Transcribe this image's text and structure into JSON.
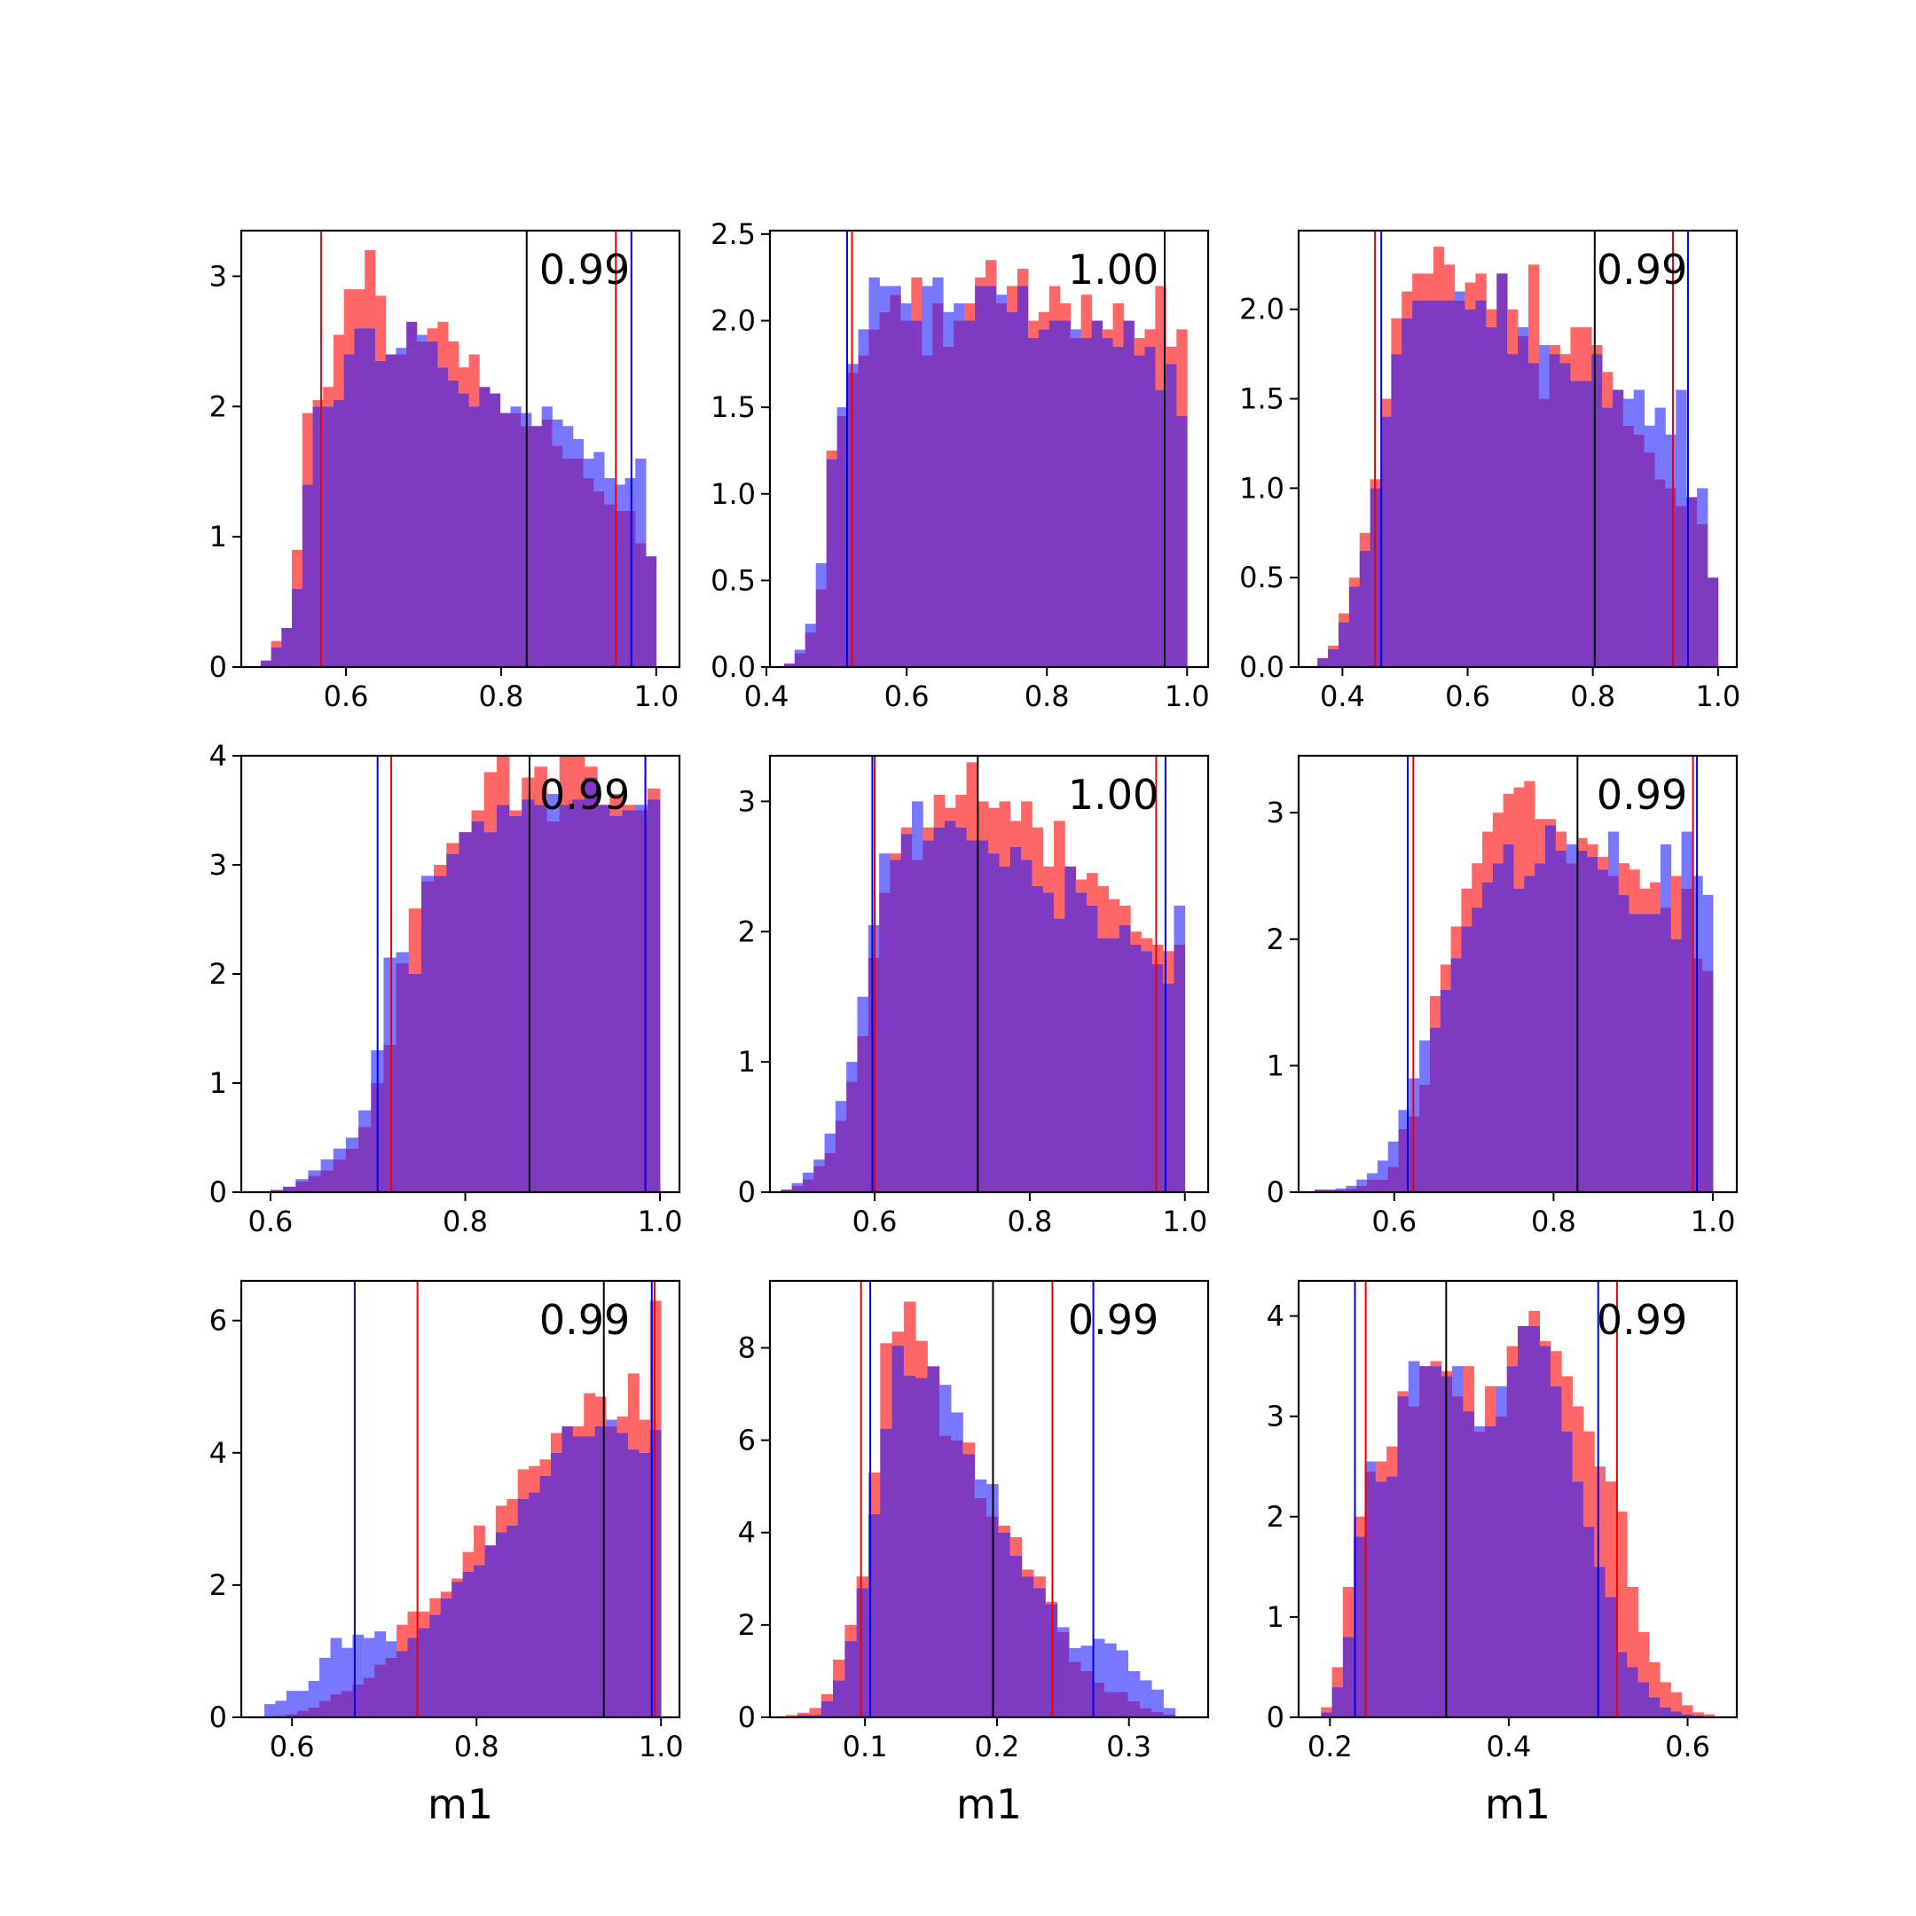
{
  "colors": {
    "red": "#ff6666",
    "blue": "#7777ff",
    "overlap": "#7f3bbf",
    "line_red": "#ee0000",
    "line_blue": "#0000ee",
    "line_black": "#000000"
  },
  "chart_data": [
    {
      "type": "bar",
      "xlim": [
        0.465,
        1.03
      ],
      "ylim": [
        0,
        3.35
      ],
      "xticks": [
        0.6,
        0.8,
        1.0
      ],
      "xtick_labels": [
        "0.6",
        "0.8",
        "1.0"
      ],
      "yticks": [
        0,
        1,
        2,
        3
      ],
      "ytick_labels": [
        "0",
        "1",
        "2",
        "3"
      ],
      "bins": [
        0.49,
        1.0
      ],
      "red_values": [
        0.05,
        0.2,
        0.3,
        0.9,
        1.95,
        2.05,
        2.15,
        2.55,
        2.9,
        2.9,
        3.2,
        2.85,
        2.4,
        2.4,
        2.65,
        2.5,
        2.6,
        2.65,
        2.5,
        2.3,
        2.4,
        2.15,
        2.1,
        1.95,
        1.95,
        1.85,
        1.85,
        1.9,
        1.7,
        1.6,
        1.6,
        1.45,
        1.35,
        1.25,
        1.2,
        1.2,
        0.95,
        0.85
      ],
      "blue_values": [
        0.05,
        0.15,
        0.3,
        0.6,
        1.4,
        2.0,
        2.0,
        2.05,
        2.4,
        2.6,
        2.6,
        2.35,
        2.4,
        2.45,
        2.65,
        2.55,
        2.5,
        2.3,
        2.2,
        2.1,
        2.0,
        2.15,
        2.1,
        1.95,
        2.0,
        1.95,
        1.85,
        2.0,
        1.9,
        1.85,
        1.75,
        1.6,
        1.65,
        1.45,
        1.4,
        1.45,
        1.6,
        0.85
      ],
      "vlines": [
        {
          "x": 0.568,
          "color": "red"
        },
        {
          "x": 0.948,
          "color": "red"
        },
        {
          "x": 0.968,
          "color": "blue"
        },
        {
          "x": 0.833,
          "color": "black"
        }
      ],
      "annotation": "0.99",
      "xlabel": ""
    },
    {
      "type": "bar",
      "xlim": [
        0.405,
        1.03
      ],
      "ylim": [
        0,
        2.52
      ],
      "xticks": [
        0.4,
        0.6,
        0.8,
        1.0
      ],
      "xtick_labels": [
        "0.4",
        "0.6",
        "0.8",
        "1.0"
      ],
      "yticks": [
        0.0,
        0.5,
        1.0,
        1.5,
        2.0,
        2.5
      ],
      "ytick_labels": [
        "0.0",
        "0.5",
        "1.0",
        "1.5",
        "2.0",
        "2.5"
      ],
      "bins": [
        0.425,
        1.0
      ],
      "red_values": [
        0.02,
        0.08,
        0.2,
        0.45,
        1.25,
        1.45,
        1.7,
        1.8,
        1.95,
        2.05,
        2.15,
        2.0,
        2.25,
        1.8,
        2.1,
        1.85,
        2.0,
        2.1,
        2.25,
        2.35,
        2.1,
        2.2,
        2.3,
        2.0,
        2.05,
        2.2,
        2.1,
        1.9,
        2.15,
        2.0,
        1.95,
        2.1,
        2.0,
        1.9,
        1.95,
        2.2,
        1.85,
        1.95
      ],
      "blue_values": [
        0.02,
        0.1,
        0.25,
        0.6,
        1.2,
        1.5,
        1.75,
        1.95,
        2.25,
        2.2,
        2.2,
        2.1,
        2.0,
        2.2,
        2.25,
        2.05,
        2.1,
        2.0,
        2.2,
        2.2,
        2.15,
        2.05,
        2.2,
        1.9,
        1.95,
        2.0,
        2.0,
        1.95,
        1.9,
        2.0,
        1.9,
        1.85,
        2.0,
        1.8,
        1.85,
        1.6,
        1.75,
        1.45
      ],
      "vlines": [
        {
          "x": 0.515,
          "color": "blue"
        },
        {
          "x": 0.522,
          "color": "red"
        },
        {
          "x": 0.968,
          "color": "red"
        },
        {
          "x": 0.968,
          "color": "black"
        }
      ],
      "annotation": "1.00",
      "xlabel": ""
    },
    {
      "type": "bar",
      "xlim": [
        0.33,
        1.03
      ],
      "ylim": [
        0,
        2.44
      ],
      "xticks": [
        0.4,
        0.6,
        0.8,
        1.0
      ],
      "xtick_labels": [
        "0.4",
        "0.6",
        "0.8",
        "1.0"
      ],
      "yticks": [
        0.0,
        0.5,
        1.0,
        1.5,
        2.0
      ],
      "ytick_labels": [
        "0.0",
        "0.5",
        "1.0",
        "1.5",
        "2.0"
      ],
      "bins": [
        0.36,
        1.0
      ],
      "red_values": [
        0.05,
        0.12,
        0.3,
        0.5,
        0.75,
        1.05,
        1.5,
        1.95,
        2.1,
        2.2,
        2.2,
        2.35,
        2.25,
        2.05,
        2.15,
        2.2,
        2.0,
        2.2,
        2.0,
        1.85,
        2.25,
        1.5,
        1.8,
        1.75,
        1.9,
        1.9,
        1.8,
        1.65,
        1.55,
        1.35,
        1.3,
        1.2,
        1.05,
        1.0,
        0.9,
        0.95,
        0.8,
        0.5
      ],
      "blue_values": [
        0.05,
        0.1,
        0.25,
        0.45,
        0.65,
        1.0,
        1.4,
        1.75,
        1.95,
        2.05,
        2.05,
        2.05,
        2.05,
        2.1,
        2.0,
        2.05,
        1.9,
        2.2,
        1.75,
        1.9,
        1.7,
        1.8,
        1.75,
        1.7,
        1.6,
        1.6,
        1.75,
        1.45,
        1.55,
        1.5,
        1.55,
        1.35,
        1.45,
        1.3,
        1.55,
        0.95,
        1.0,
        0.5
      ],
      "vlines": [
        {
          "x": 0.452,
          "color": "red"
        },
        {
          "x": 0.462,
          "color": "blue"
        },
        {
          "x": 0.928,
          "color": "red"
        },
        {
          "x": 0.952,
          "color": "blue"
        },
        {
          "x": 0.803,
          "color": "black"
        }
      ],
      "annotation": "0.99",
      "xlabel": ""
    },
    {
      "type": "bar",
      "xlim": [
        0.57,
        1.02
      ],
      "ylim": [
        0,
        4.0
      ],
      "xticks": [
        0.6,
        0.8,
        1.0
      ],
      "xtick_labels": [
        "0.6",
        "0.8",
        "1.0"
      ],
      "yticks": [
        0,
        1,
        2,
        3,
        4
      ],
      "ytick_labels": [
        "0",
        "1",
        "2",
        "3",
        "4"
      ],
      "bins": [
        0.6,
        1.0
      ],
      "red_values": [
        0.02,
        0.05,
        0.1,
        0.15,
        0.2,
        0.3,
        0.4,
        0.6,
        1.0,
        1.35,
        2.1,
        2.6,
        2.85,
        3.0,
        3.2,
        3.3,
        3.5,
        3.85,
        4.0,
        3.5,
        3.8,
        3.9,
        3.4,
        4.15,
        4.15,
        3.9,
        3.55,
        3.65,
        3.55,
        3.5,
        3.7
      ],
      "blue_values": [
        0.02,
        0.05,
        0.12,
        0.2,
        0.3,
        0.4,
        0.5,
        0.75,
        1.3,
        2.15,
        2.2,
        2.0,
        2.9,
        2.9,
        3.1,
        3.3,
        3.4,
        3.3,
        3.55,
        3.45,
        3.6,
        3.55,
        3.65,
        3.55,
        3.6,
        3.8,
        3.55,
        3.45,
        3.5,
        3.55,
        3.6
      ],
      "vlines": [
        {
          "x": 0.71,
          "color": "blue"
        },
        {
          "x": 0.724,
          "color": "red"
        },
        {
          "x": 0.985,
          "color": "red"
        },
        {
          "x": 0.985,
          "color": "blue"
        },
        {
          "x": 0.866,
          "color": "black"
        }
      ],
      "annotation": "0.99",
      "xlabel": ""
    },
    {
      "type": "bar",
      "xlim": [
        0.465,
        1.03
      ],
      "ylim": [
        0,
        3.35
      ],
      "xticks": [
        0.6,
        0.8,
        1.0
      ],
      "xtick_labels": [
        "0.6",
        "0.8",
        "1.0"
      ],
      "yticks": [
        0,
        1,
        2,
        3
      ],
      "ytick_labels": [
        "0",
        "1",
        "2",
        "3"
      ],
      "bins": [
        0.465,
        1.0
      ],
      "red_values": [
        0.0,
        0.02,
        0.05,
        0.1,
        0.2,
        0.3,
        0.55,
        0.85,
        1.2,
        1.8,
        2.3,
        2.6,
        2.8,
        2.55,
        2.8,
        3.05,
        2.95,
        3.05,
        3.3,
        3.0,
        2.95,
        3.0,
        2.85,
        3.0,
        2.8,
        2.5,
        2.85,
        2.5,
        2.4,
        2.45,
        2.35,
        2.25,
        2.2,
        2.0,
        1.95,
        1.9,
        1.85,
        1.9
      ],
      "blue_values": [
        0.0,
        0.02,
        0.07,
        0.15,
        0.25,
        0.45,
        0.7,
        1.0,
        1.5,
        2.05,
        2.6,
        2.55,
        2.75,
        3.0,
        2.7,
        2.8,
        2.85,
        2.8,
        2.7,
        2.7,
        2.6,
        2.5,
        2.65,
        2.55,
        2.35,
        2.3,
        2.1,
        2.5,
        2.3,
        2.2,
        1.95,
        1.95,
        2.05,
        1.9,
        1.85,
        1.75,
        1.6,
        2.2
      ],
      "vlines": [
        {
          "x": 0.597,
          "color": "blue"
        },
        {
          "x": 0.6,
          "color": "red"
        },
        {
          "x": 0.963,
          "color": "red"
        },
        {
          "x": 0.975,
          "color": "blue"
        },
        {
          "x": 0.733,
          "color": "black"
        }
      ],
      "annotation": "1.00",
      "xlabel": ""
    },
    {
      "type": "bar",
      "xlim": [
        0.48,
        1.03
      ],
      "ylim": [
        0,
        3.45
      ],
      "xticks": [
        0.6,
        0.8,
        1.0
      ],
      "xtick_labels": [
        "0.6",
        "0.8",
        "1.0"
      ],
      "yticks": [
        0,
        1,
        2,
        3
      ],
      "ytick_labels": [
        "0",
        "1",
        "2",
        "3"
      ],
      "bins": [
        0.5,
        1.0
      ],
      "red_values": [
        0.02,
        0.02,
        0.02,
        0.03,
        0.05,
        0.1,
        0.1,
        0.2,
        0.5,
        0.6,
        0.85,
        1.55,
        1.8,
        2.1,
        2.4,
        2.6,
        2.85,
        3.0,
        3.15,
        3.2,
        3.25,
        2.95,
        2.95,
        2.85,
        2.6,
        2.8,
        2.75,
        2.65,
        2.5,
        2.6,
        2.55,
        2.4,
        2.45,
        2.25,
        2.5,
        2.4,
        1.85,
        1.75
      ],
      "blue_values": [
        0.02,
        0.02,
        0.03,
        0.05,
        0.1,
        0.15,
        0.25,
        0.4,
        0.65,
        0.9,
        1.2,
        1.3,
        1.6,
        1.85,
        2.1,
        2.25,
        2.45,
        2.6,
        2.75,
        2.4,
        2.5,
        2.6,
        2.9,
        2.7,
        2.75,
        2.7,
        2.65,
        2.55,
        2.85,
        2.35,
        2.2,
        2.2,
        2.2,
        2.75,
        2.0,
        2.85,
        2.5,
        2.35
      ],
      "vlines": [
        {
          "x": 0.617,
          "color": "blue"
        },
        {
          "x": 0.624,
          "color": "red"
        },
        {
          "x": 0.975,
          "color": "red"
        },
        {
          "x": 0.98,
          "color": "blue"
        },
        {
          "x": 0.83,
          "color": "black"
        }
      ],
      "annotation": "0.99",
      "xlabel": ""
    },
    {
      "type": "bar",
      "xlim": [
        0.545,
        1.02
      ],
      "ylim": [
        0,
        6.6
      ],
      "xticks": [
        0.6,
        0.8,
        1.0
      ],
      "xtick_labels": [
        "0.6",
        "0.8",
        "1.0"
      ],
      "yticks": [
        0,
        2,
        4,
        6
      ],
      "ytick_labels": [
        "0",
        "2",
        "4",
        "6"
      ],
      "bins": [
        0.57,
        1.0
      ],
      "red_values": [
        0.0,
        0.02,
        0.05,
        0.1,
        0.15,
        0.25,
        0.35,
        0.4,
        0.5,
        0.6,
        0.8,
        0.9,
        1.4,
        1.6,
        1.6,
        1.8,
        1.9,
        2.1,
        2.5,
        2.9,
        2.6,
        3.2,
        3.3,
        3.75,
        3.8,
        3.9,
        4.3,
        4.4,
        4.4,
        4.9,
        4.85,
        4.4,
        4.55,
        5.2,
        4.5,
        6.3
      ],
      "blue_values": [
        0.2,
        0.25,
        0.4,
        0.4,
        0.55,
        0.9,
        1.2,
        1.05,
        1.25,
        1.2,
        1.3,
        1.15,
        1.0,
        1.2,
        1.35,
        1.55,
        1.8,
        2.05,
        2.2,
        2.3,
        2.6,
        2.8,
        2.9,
        3.3,
        3.4,
        3.65,
        4.0,
        4.4,
        4.25,
        4.25,
        4.4,
        4.5,
        4.3,
        4.05,
        4.0,
        4.35
      ],
      "vlines": [
        {
          "x": 0.668,
          "color": "blue"
        },
        {
          "x": 0.736,
          "color": "red"
        },
        {
          "x": 0.99,
          "color": "blue"
        },
        {
          "x": 0.993,
          "color": "red"
        },
        {
          "x": 0.938,
          "color": "black"
        }
      ],
      "annotation": "0.99",
      "xlabel": "m1"
    },
    {
      "type": "bar",
      "xlim": [
        0.028,
        0.36
      ],
      "ylim": [
        0,
        9.45
      ],
      "xticks": [
        0.1,
        0.2,
        0.3
      ],
      "xtick_labels": [
        "0.1",
        "0.2",
        "0.3"
      ],
      "yticks": [
        0,
        2,
        4,
        6,
        8
      ],
      "ytick_labels": [
        "0",
        "2",
        "4",
        "6",
        "8"
      ],
      "bins": [
        0.04,
        0.335
      ],
      "red_values": [
        0.05,
        0.1,
        0.2,
        0.5,
        1.25,
        2.0,
        3.05,
        5.3,
        8.1,
        8.35,
        9.0,
        8.15,
        7.6,
        6.1,
        6.0,
        5.95,
        4.75,
        4.35,
        4.15,
        3.9,
        3.2,
        3.05,
        2.5,
        1.85,
        1.2,
        1.0,
        0.75,
        0.55,
        0.55,
        0.35,
        0.2,
        0.12,
        0.06
      ],
      "blue_values": [
        0.0,
        0.05,
        0.05,
        0.35,
        0.8,
        1.65,
        2.8,
        4.4,
        6.25,
        8.05,
        7.4,
        7.35,
        7.6,
        7.2,
        6.6,
        5.7,
        5.15,
        5.05,
        4.0,
        3.5,
        3.05,
        2.8,
        2.45,
        1.95,
        1.5,
        1.55,
        1.7,
        1.6,
        1.45,
        1.0,
        0.8,
        0.6,
        0.2
      ],
      "vlines": [
        {
          "x": 0.097,
          "color": "red"
        },
        {
          "x": 0.104,
          "color": "blue"
        },
        {
          "x": 0.242,
          "color": "red"
        },
        {
          "x": 0.273,
          "color": "blue"
        },
        {
          "x": 0.197,
          "color": "black"
        }
      ],
      "annotation": "0.99",
      "xlabel": "m1"
    },
    {
      "type": "bar",
      "xlim": [
        0.165,
        0.655
      ],
      "ylim": [
        0,
        4.35
      ],
      "xticks": [
        0.2,
        0.4,
        0.6
      ],
      "xtick_labels": [
        "0.2",
        "0.4",
        "0.6"
      ],
      "yticks": [
        0,
        1,
        2,
        3,
        4
      ],
      "ytick_labels": [
        "0",
        "1",
        "2",
        "3",
        "4"
      ],
      "bins": [
        0.19,
        0.63
      ],
      "red_values": [
        0.1,
        0.5,
        1.3,
        2.0,
        2.45,
        2.55,
        2.7,
        3.25,
        3.1,
        3.5,
        3.55,
        3.45,
        3.2,
        3.5,
        2.85,
        3.3,
        3.0,
        3.7,
        3.9,
        4.05,
        3.75,
        3.65,
        3.4,
        3.1,
        2.85,
        2.5,
        2.35,
        2.05,
        1.3,
        0.85,
        0.55,
        0.35,
        0.25,
        0.12,
        0.05,
        0.03
      ],
      "blue_values": [
        0.05,
        0.3,
        0.8,
        1.8,
        2.55,
        2.35,
        2.4,
        3.2,
        3.55,
        3.5,
        3.5,
        3.4,
        3.5,
        3.05,
        2.9,
        2.9,
        3.3,
        3.5,
        3.9,
        3.9,
        3.7,
        3.3,
        2.85,
        2.35,
        1.9,
        1.5,
        1.2,
        0.65,
        0.5,
        0.35,
        0.2,
        0.1,
        0.06,
        0.03,
        0.02,
        0.01
      ],
      "vlines": [
        {
          "x": 0.228,
          "color": "blue"
        },
        {
          "x": 0.24,
          "color": "red"
        },
        {
          "x": 0.5,
          "color": "blue"
        },
        {
          "x": 0.521,
          "color": "red"
        },
        {
          "x": 0.33,
          "color": "black"
        }
      ],
      "annotation": "0.99",
      "xlabel": "m1"
    }
  ]
}
